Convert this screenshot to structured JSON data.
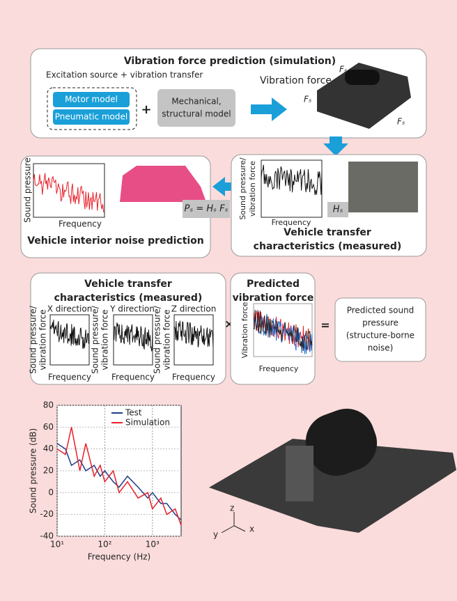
{
  "box1": {
    "title": "Vibration force prediction (simulation)",
    "subtitle": "Excitation source + vibration transfer",
    "motor": "Motor model",
    "pneumatic": "Pneumatic model",
    "plus": "+",
    "mechanical": [
      "Mechanical,",
      "structural model"
    ],
    "force_label": "Vibration force",
    "fs_labels": [
      "Fₛ",
      "Fₛ",
      "Fₛ"
    ]
  },
  "box2": {
    "y_label": "Sound pressure",
    "x_label": "Frequency",
    "title": "Vehicle interior noise prediction",
    "formula": "Pₛ = Hₛ Fₛ"
  },
  "box3": {
    "y_label": [
      "Sound pressure/",
      "vibration force"
    ],
    "x_label": "Frequency",
    "hs": "Hₛ",
    "title": [
      "Vehicle transfer",
      "characteristics (measured)"
    ]
  },
  "box4": {
    "title": [
      "Vehicle transfer",
      "characteristics (measured)"
    ],
    "directions": [
      "X direction",
      "Y direction",
      "Z direction"
    ],
    "y_label": [
      "Sound pressure/",
      "vibration force"
    ],
    "x_label": "Frequency"
  },
  "times": "×",
  "box5": {
    "title": [
      "Predicted",
      "vibration force"
    ],
    "y_label": "Vibration force",
    "x_label": "Frequency"
  },
  "equals": "=",
  "box6": {
    "lines": [
      "Predicted sound",
      "pressure",
      "(structure-borne",
      "noise)"
    ]
  },
  "chart_data": {
    "type": "line",
    "xlabel": "Frequency (Hz)",
    "ylabel": "Sound pressure (dB)",
    "log_x": true,
    "grid": true,
    "xlim": [
      10,
      4000
    ],
    "ylim": [
      -40,
      80
    ],
    "xticks": [
      {
        "value": 10,
        "label": "10¹"
      },
      {
        "value": 100,
        "label": "10²"
      },
      {
        "value": 1000,
        "label": "10³"
      }
    ],
    "yticks": [
      -40,
      -20,
      0,
      20,
      40,
      60,
      80
    ],
    "x": [
      10,
      15,
      20,
      30,
      40,
      60,
      80,
      100,
      150,
      200,
      300,
      500,
      800,
      1000,
      1500,
      2000,
      3000,
      4000
    ],
    "series": [
      {
        "name": "Test",
        "color": "#1f3c88",
        "values": [
          45,
          40,
          25,
          30,
          20,
          25,
          15,
          20,
          10,
          5,
          15,
          5,
          -5,
          0,
          -10,
          -10,
          -20,
          -25
        ]
      },
      {
        "name": "Simulation",
        "color": "#e8202a",
        "values": [
          40,
          35,
          60,
          20,
          45,
          15,
          25,
          10,
          20,
          0,
          10,
          -5,
          0,
          -15,
          -5,
          -20,
          -15,
          -30
        ]
      }
    ]
  },
  "axes_labels": {
    "z": "z",
    "y": "y",
    "x": "x"
  }
}
